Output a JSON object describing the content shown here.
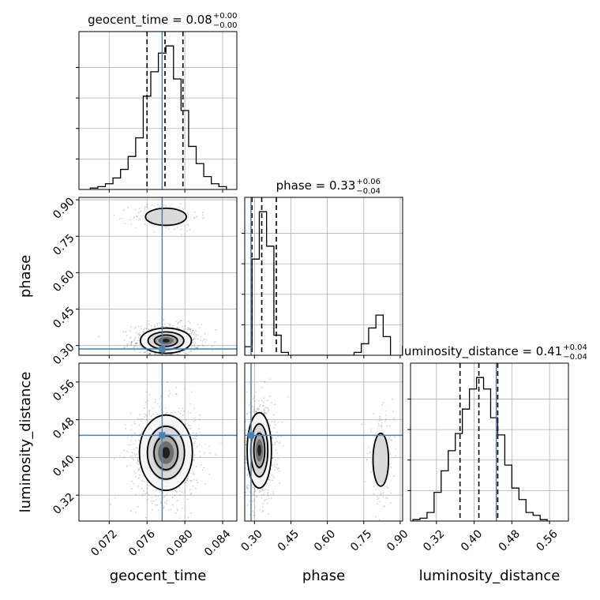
{
  "chart_data": {
    "type": "corner",
    "parameters": [
      "geocent_time",
      "phase",
      "luminosity_distance"
    ],
    "axis_labels": {
      "geocent_time": "geocent_time",
      "phase": "phase",
      "luminosity_distance": "luminosity_distance"
    },
    "ranges": {
      "geocent_time": [
        0.0688,
        0.0855
      ],
      "phase": [
        0.26,
        0.91
      ],
      "luminosity_distance": [
        0.265,
        0.6
      ]
    },
    "ticks": {
      "geocent_time": [
        0.072,
        0.076,
        0.08,
        0.084
      ],
      "phase": [
        0.3,
        0.45,
        0.6,
        0.75,
        0.9
      ],
      "luminosity_distance": [
        0.32,
        0.4,
        0.48,
        0.56
      ]
    },
    "tick_labels": {
      "geocent_time": [
        "0.072",
        "0.076",
        "0.080",
        "0.084"
      ],
      "phase": [
        "0.30",
        "0.45",
        "0.60",
        "0.75",
        "0.90"
      ],
      "luminosity_distance": [
        "0.32",
        "0.40",
        "0.48",
        "0.56"
      ]
    },
    "truths": {
      "geocent_time": 0.0776,
      "phase": 0.286,
      "luminosity_distance": 0.447
    },
    "truth_color": "#4682b4",
    "titles": [
      {
        "param": "geocent_time",
        "text": "geocent_time = 0.08",
        "plus": "+0.00",
        "minus": "−0.00"
      },
      {
        "param": "phase",
        "text": "phase = 0.33",
        "plus": "+0.06",
        "minus": "−0.04"
      },
      {
        "param": "luminosity_distance",
        "text": "luminosity_distance = 0.41",
        "plus": "+0.04",
        "minus": "−0.04"
      }
    ],
    "quantiles": {
      "geocent_time": [
        0.076,
        0.0779,
        0.0798
      ],
      "phase": [
        0.29,
        0.33,
        0.39
      ],
      "luminosity_distance": [
        0.37,
        0.41,
        0.45
      ]
    },
    "histograms": {
      "geocent_time": {
        "bin_edges": [
          0.07,
          0.0708,
          0.0716,
          0.0724,
          0.0732,
          0.074,
          0.0748,
          0.0756,
          0.0764,
          0.0772,
          0.078,
          0.0788,
          0.0796,
          0.0804,
          0.0812,
          0.082,
          0.0828,
          0.0836,
          0.0844
        ],
        "counts": [
          0.01,
          0.02,
          0.04,
          0.08,
          0.14,
          0.23,
          0.36,
          0.65,
          0.82,
          0.95,
          1.0,
          0.77,
          0.55,
          0.3,
          0.18,
          0.09,
          0.04,
          0.02
        ]
      },
      "phase": {
        "bin_edges": [
          0.26,
          0.29,
          0.32,
          0.35,
          0.38,
          0.41,
          0.44,
          0.47,
          0.5,
          0.53,
          0.56,
          0.59,
          0.62,
          0.65,
          0.68,
          0.71,
          0.74,
          0.77,
          0.8,
          0.83,
          0.86
        ],
        "counts": [
          0.06,
          0.67,
          1.0,
          0.76,
          0.14,
          0.02,
          0,
          0,
          0,
          0,
          0,
          0,
          0,
          0,
          0,
          0.02,
          0.08,
          0.19,
          0.28,
          0.13
        ]
      },
      "luminosity_distance": {
        "bin_edges": [
          0.27,
          0.285,
          0.3,
          0.315,
          0.33,
          0.345,
          0.36,
          0.375,
          0.39,
          0.405,
          0.42,
          0.435,
          0.45,
          0.465,
          0.48,
          0.495,
          0.51,
          0.525,
          0.54,
          0.555
        ],
        "counts": [
          0.01,
          0.02,
          0.06,
          0.2,
          0.35,
          0.49,
          0.61,
          0.78,
          0.92,
          1.0,
          0.92,
          0.72,
          0.6,
          0.39,
          0.23,
          0.15,
          0.06,
          0.04,
          0.01
        ]
      }
    },
    "joint_posteriors": [
      {
        "x": "geocent_time",
        "y": "phase",
        "modes": [
          {
            "cx": 0.078,
            "cy": 0.32,
            "sx": 0.00135,
            "sy": 0.026,
            "w": 0.9
          },
          {
            "cx": 0.078,
            "cy": 0.83,
            "sx": 0.00135,
            "sy": 0.022,
            "w": 0.2
          }
        ]
      },
      {
        "x": "geocent_time",
        "y": "luminosity_distance",
        "modes": [
          {
            "cx": 0.078,
            "cy": 0.41,
            "sx": 0.0014,
            "sy": 0.04,
            "w": 1.0
          }
        ]
      },
      {
        "x": "phase",
        "y": "luminosity_distance",
        "modes": [
          {
            "cx": 0.32,
            "cy": 0.415,
            "sx": 0.025,
            "sy": 0.04,
            "w": 0.9
          },
          {
            "cx": 0.82,
            "cy": 0.395,
            "sx": 0.02,
            "sy": 0.035,
            "w": 0.25
          }
        ]
      }
    ],
    "grid": true
  }
}
